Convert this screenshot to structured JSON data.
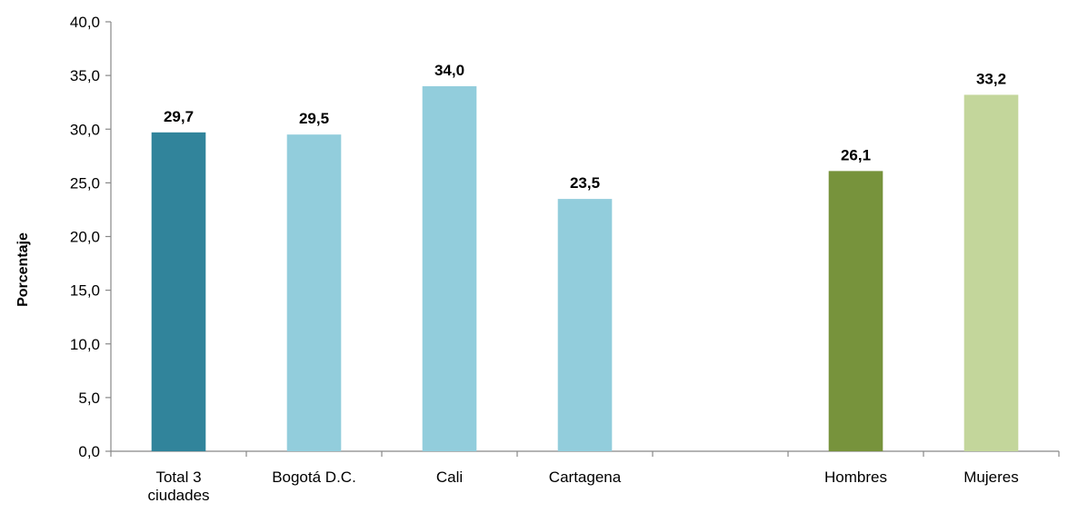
{
  "chart_data": {
    "type": "bar",
    "title": "",
    "xlabel": "",
    "ylabel": "Porcentaje",
    "ylim": [
      0,
      40
    ],
    "ytick_step": 5,
    "ytick_labels": [
      "0,0",
      "5,0",
      "10,0",
      "15,0",
      "20,0",
      "25,0",
      "30,0",
      "35,0",
      "40,0"
    ],
    "grid": false,
    "legend": "none",
    "categories": [
      {
        "label": [
          "Total 3",
          "ciudades"
        ],
        "value": 29.7,
        "value_label": "29,7",
        "color": "#31849b"
      },
      {
        "label": [
          "Bogotá D.C."
        ],
        "value": 29.5,
        "value_label": "29,5",
        "color": "#92cddc"
      },
      {
        "label": [
          "Cali"
        ],
        "value": 34.0,
        "value_label": "34,0",
        "color": "#92cddc"
      },
      {
        "label": [
          "Cartagena"
        ],
        "value": 23.5,
        "value_label": "23,5",
        "color": "#92cddc"
      },
      {
        "label": [
          ""
        ],
        "value": null,
        "value_label": "",
        "color": "none"
      },
      {
        "label": [
          "Hombres"
        ],
        "value": 26.1,
        "value_label": "26,1",
        "color": "#77933c"
      },
      {
        "label": [
          "Mujeres"
        ],
        "value": 33.2,
        "value_label": "33,2",
        "color": "#c3d69b"
      }
    ]
  }
}
